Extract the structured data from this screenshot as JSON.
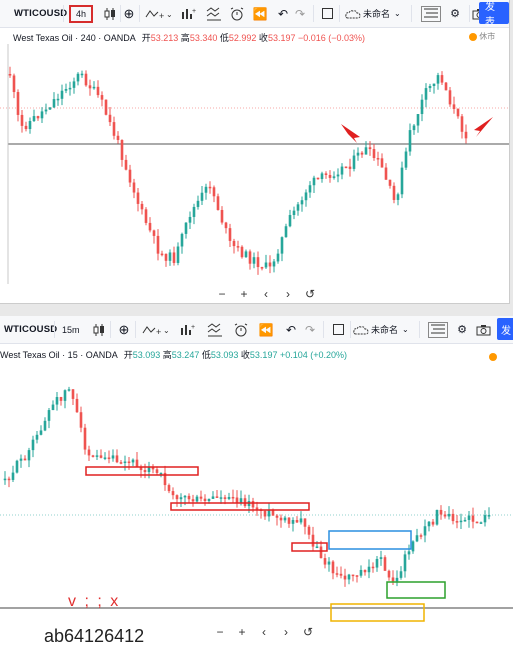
{
  "top": {
    "symbol": "WTICOUSD",
    "interval": "4h",
    "layout_name": "未命名",
    "publish": "发表",
    "instrument": "West Texas Oil · 240 · OANDA",
    "o_label": "开",
    "o": "53.213",
    "h_label": "高",
    "h": "53.340",
    "l_label": "低",
    "l": "52.992",
    "c_label": "收",
    "c": "53.197",
    "change": "−0.016 (−0.03%)",
    "market_status": "休市"
  },
  "bottom": {
    "symbol": "WTICOUSD",
    "interval": "15m",
    "layout_name": "未命名",
    "publish": "发",
    "instrument": "West Texas Oil · 15 · OANDA",
    "o_label": "开",
    "o": "53.093",
    "h_label": "高",
    "h": "53.247",
    "l_label": "低",
    "l": "53.093",
    "c_label": "收",
    "c": "53.197",
    "change": "+0.104 (+0.20%)"
  },
  "navbar": {
    "zoom_out": "−",
    "zoom_in": "+",
    "prev": "‹",
    "next": "›",
    "reset": "↺"
  },
  "annotations": {
    "red_note": "v ; ; x",
    "watermark": "ab64126412"
  },
  "colors": {
    "up": "#26a69a",
    "down": "#ef5350",
    "accent": "#2962ff"
  }
}
